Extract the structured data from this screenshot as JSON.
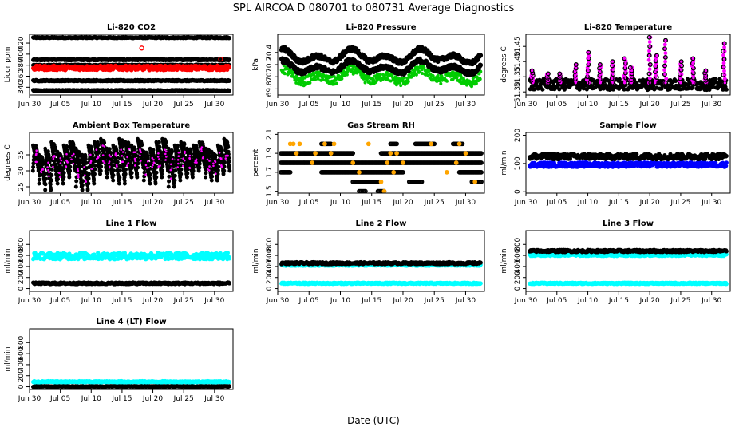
{
  "figure": {
    "title": "SPL   AIRCOA D   080701 to 080731   Average Diagnostics",
    "xlabel": "Date (UTC)"
  },
  "colors": {
    "black": "#000000",
    "red": "#ff0000",
    "green": "#00cc00",
    "magenta": "#ff00ff",
    "orange": "#ffa500",
    "blue": "#0000ff",
    "cyan": "#00ffff"
  },
  "chart_data": [
    {
      "type": "scatter",
      "title": "Li-820 CO2",
      "ylabel": "Licor ppm",
      "xlim": [
        0,
        33
      ],
      "ylim": [
        326,
        436
      ],
      "yticks": [
        340,
        360,
        380,
        400,
        420
      ],
      "xtick_positions": [
        0,
        5,
        10,
        15,
        20,
        25,
        30
      ],
      "xtick_labels": [
        "Jun 30",
        "Jul 05",
        "Jul 10",
        "Jul 15",
        "Jul 20",
        "Jul 25",
        "Jul 30"
      ],
      "series": [
        {
          "name": "ref 430",
          "color": "black",
          "style": "band",
          "level": 430,
          "spread": 1
        },
        {
          "name": "ref 390",
          "color": "black",
          "style": "band",
          "level": 390,
          "spread": 1
        },
        {
          "name": "ref 380",
          "color": "black",
          "style": "band",
          "level": 380,
          "spread": 1
        },
        {
          "name": "ref 352",
          "color": "black",
          "style": "band",
          "level": 352,
          "spread": 1
        },
        {
          "name": "ref 334",
          "color": "black",
          "style": "band",
          "level": 334,
          "spread": 1
        },
        {
          "name": "sample",
          "color": "red",
          "style": "band",
          "level": 375,
          "spread": 4
        },
        {
          "name": "outliers",
          "color": "red",
          "style": "points",
          "x": [
            18.2,
            31.0
          ],
          "y": [
            411,
            391
          ]
        }
      ]
    },
    {
      "type": "scatter",
      "title": "Li-820 Pressure",
      "ylabel": "kPa",
      "xlim": [
        0,
        33
      ],
      "ylim": [
        69.7,
        70.7
      ],
      "yticks": [
        69.8,
        70.0,
        70.2,
        70.4
      ],
      "xtick_positions": [
        0,
        5,
        10,
        15,
        20,
        25,
        30
      ],
      "xtick_labels": [
        "Jun 30",
        "Jul 05",
        "Jul 10",
        "Jul 15",
        "Jul 20",
        "Jul 25",
        "Jul 30"
      ],
      "series": [
        {
          "name": "sample",
          "color": "green",
          "style": "wave",
          "base": 70.0,
          "amp": 0.12,
          "spread": 0.07,
          "phase": 0.6
        },
        {
          "name": "ref A",
          "color": "black",
          "style": "wave",
          "base": 70.15,
          "amp": 0.12,
          "spread": 0.035,
          "phase": 0.6
        },
        {
          "name": "ref B",
          "color": "black",
          "style": "wave",
          "base": 70.33,
          "amp": 0.13,
          "spread": 0.035,
          "phase": 0.6
        }
      ]
    },
    {
      "type": "scatter",
      "title": "Li-820 Temperature",
      "ylabel": "degrees C",
      "xlim": [
        0,
        33
      ],
      "ylim": [
        51.29,
        51.49
      ],
      "yticks": [
        51.3,
        51.35,
        51.4,
        51.45
      ],
      "ytick_labels": [
        "51.30",
        "51.35",
        "51.40",
        "51.45"
      ],
      "xtick_positions": [
        0,
        5,
        10,
        15,
        20,
        25,
        30
      ],
      "xtick_labels": [
        "Jun 30",
        "Jul 05",
        "Jul 10",
        "Jul 15",
        "Jul 20",
        "Jul 25",
        "Jul 30"
      ],
      "series": [
        {
          "name": "baseline",
          "color": "black",
          "style": "band",
          "level": 51.325,
          "spread": 0.018
        },
        {
          "name": "spikes",
          "color": "magenta",
          "style": "spikes",
          "x": [
            1,
            3.5,
            5.5,
            8,
            10,
            12,
            14,
            16,
            17,
            20,
            21,
            22.5,
            25,
            27,
            29,
            32
          ],
          "y": [
            51.37,
            51.36,
            51.36,
            51.39,
            51.43,
            51.39,
            51.4,
            51.41,
            51.38,
            51.48,
            51.42,
            51.47,
            51.4,
            51.41,
            51.37,
            51.46
          ]
        }
      ]
    },
    {
      "type": "scatter",
      "title": "Ambient Box Temperature",
      "ylabel": "degrees C",
      "xlim": [
        0,
        33
      ],
      "ylim": [
        23,
        42
      ],
      "yticks": [
        25,
        30,
        35
      ],
      "xtick_positions": [
        0,
        5,
        10,
        15,
        20,
        25,
        30
      ],
      "xtick_labels": [
        "Jun 30",
        "Jul 05",
        "Jul 10",
        "Jul 15",
        "Jul 20",
        "Jul 25",
        "Jul 30"
      ],
      "series": [
        {
          "name": "ambient",
          "color": "black",
          "style": "diurnal",
          "days": [
            1,
            2,
            3,
            4,
            5,
            6,
            7,
            8,
            9,
            10,
            11,
            12,
            13,
            14,
            15,
            16,
            17,
            18,
            19,
            20,
            21,
            22,
            23,
            24,
            25,
            26,
            27,
            28,
            29,
            30,
            31,
            32
          ],
          "min": [
            30,
            26,
            24,
            27,
            26,
            28,
            30,
            25,
            24,
            26,
            29,
            30,
            28,
            27,
            26,
            29,
            28,
            31,
            27,
            26,
            28,
            30,
            25,
            27,
            29,
            28,
            30,
            31,
            28,
            27,
            29,
            30
          ],
          "max": [
            38,
            35,
            37,
            39,
            36,
            38,
            39,
            37,
            35,
            38,
            39,
            40,
            37,
            38,
            40,
            39,
            38,
            40,
            36,
            37,
            39,
            40,
            37,
            38,
            39,
            37,
            38,
            39,
            37,
            36,
            38,
            40
          ]
        },
        {
          "name": "ambient (alt)",
          "color": "magenta",
          "style": "diurnal-dots"
        }
      ]
    },
    {
      "type": "scatter",
      "title": "Gas Stream RH",
      "ylabel": "percent",
      "xlim": [
        0,
        33
      ],
      "ylim": [
        1.48,
        2.12
      ],
      "yticks": [
        1.5,
        1.7,
        1.9,
        2.1
      ],
      "xtick_positions": [
        0,
        5,
        10,
        15,
        20,
        25,
        30
      ],
      "xtick_labels": [
        "Jun 30",
        "Jul 05",
        "Jul 10",
        "Jul 15",
        "Jul 20",
        "Jul 25",
        "Jul 30"
      ],
      "series": [
        {
          "name": "level 1.8",
          "color": "black",
          "style": "segments",
          "level": 1.8,
          "ranges": [
            [
              0.5,
              32.5
            ]
          ]
        },
        {
          "name": "level 1.9",
          "color": "black",
          "style": "segments",
          "level": 1.9,
          "ranges": [
            [
              0.5,
              12
            ],
            [
              16.5,
              32.5
            ]
          ]
        },
        {
          "name": "level 1.7",
          "color": "black",
          "style": "segments",
          "level": 1.7,
          "ranges": [
            [
              0.5,
              2
            ],
            [
              7,
              20
            ],
            [
              29,
              32.5
            ]
          ]
        },
        {
          "name": "level 1.6",
          "color": "black",
          "style": "segments",
          "level": 1.6,
          "ranges": [
            [
              12,
              16
            ],
            [
              21,
              23
            ],
            [
              31,
              32.5
            ]
          ]
        },
        {
          "name": "level 2.0",
          "color": "black",
          "style": "segments",
          "level": 2.0,
          "ranges": [
            [
              7,
              8.5
            ],
            [
              18,
              19
            ],
            [
              22,
              25
            ],
            [
              28,
              29.5
            ]
          ]
        },
        {
          "name": "level 1.5",
          "color": "black",
          "style": "segments",
          "level": 1.5,
          "ranges": [
            [
              13,
              14
            ],
            [
              16,
              17
            ]
          ]
        },
        {
          "name": "alt",
          "color": "orange",
          "style": "points",
          "x": [
            2,
            2.5,
            3,
            3.5,
            5.5,
            6,
            7.5,
            8.5,
            9,
            12,
            13,
            14.5,
            16.5,
            17,
            17.5,
            18,
            18.5,
            19,
            20,
            24.5,
            27,
            28.5,
            29,
            30,
            31.5
          ],
          "y": [
            2.0,
            2.0,
            1.9,
            2.0,
            1.8,
            1.9,
            2.0,
            1.9,
            2.0,
            1.8,
            1.7,
            2.0,
            1.6,
            1.5,
            1.8,
            1.9,
            1.7,
            1.9,
            1.8,
            2.0,
            1.7,
            1.8,
            2.0,
            1.9,
            1.6
          ]
        }
      ]
    },
    {
      "type": "scatter",
      "title": "Sample Flow",
      "ylabel": "ml/min",
      "xlim": [
        0,
        33
      ],
      "ylim": [
        -5,
        210
      ],
      "yticks": [
        0,
        100,
        200
      ],
      "xtick_positions": [
        0,
        5,
        10,
        15,
        20,
        25,
        30
      ],
      "xtick_labels": [
        "Jun 30",
        "Jul 05",
        "Jul 10",
        "Jul 15",
        "Jul 20",
        "Jul 25",
        "Jul 30"
      ],
      "series": [
        {
          "name": "sample",
          "color": "blue",
          "style": "band",
          "level": 96,
          "spread": 8
        },
        {
          "name": "ref",
          "color": "black",
          "style": "band",
          "level": 125,
          "spread": 10
        }
      ]
    },
    {
      "type": "scatter",
      "title": "Line 1 Flow",
      "ylabel": "ml/min",
      "xlim": [
        0,
        33
      ],
      "ylim": [
        -50,
        1050
      ],
      "yticks": [
        0,
        200,
        400,
        600,
        800
      ],
      "xtick_positions": [
        0,
        5,
        10,
        15,
        20,
        25,
        30
      ],
      "xtick_labels": [
        "Jun 30",
        "Jul 05",
        "Jul 10",
        "Jul 15",
        "Jul 20",
        "Jul 25",
        "Jul 30"
      ],
      "series": [
        {
          "name": "cyan",
          "color": "cyan",
          "style": "band",
          "level": 590,
          "spread": 60
        },
        {
          "name": "black",
          "color": "black",
          "style": "band",
          "level": 95,
          "spread": 15
        }
      ]
    },
    {
      "type": "scatter",
      "title": "Line 2 Flow",
      "ylabel": "ml/min",
      "xlim": [
        0,
        33
      ],
      "ylim": [
        -50,
        1050
      ],
      "yticks": [
        0,
        200,
        400,
        600,
        800
      ],
      "xtick_positions": [
        0,
        5,
        10,
        15,
        20,
        25,
        30
      ],
      "xtick_labels": [
        "Jun 30",
        "Jul 05",
        "Jul 10",
        "Jul 15",
        "Jul 20",
        "Jul 25",
        "Jul 30"
      ],
      "series": [
        {
          "name": "cyan",
          "color": "cyan",
          "style": "band",
          "level": 95,
          "spread": 12
        },
        {
          "name": "cyan hi",
          "color": "cyan",
          "style": "band",
          "level": 425,
          "spread": 12
        },
        {
          "name": "black",
          "color": "black",
          "style": "band",
          "level": 460,
          "spread": 18
        }
      ]
    },
    {
      "type": "scatter",
      "title": "Line 3 Flow",
      "ylabel": "ml/min",
      "xlim": [
        0,
        33
      ],
      "ylim": [
        -50,
        1050
      ],
      "yticks": [
        0,
        200,
        400,
        600,
        800
      ],
      "xtick_positions": [
        0,
        5,
        10,
        15,
        20,
        25,
        30
      ],
      "xtick_labels": [
        "Jun 30",
        "Jul 05",
        "Jul 10",
        "Jul 15",
        "Jul 20",
        "Jul 25",
        "Jul 30"
      ],
      "series": [
        {
          "name": "cyan",
          "color": "cyan",
          "style": "band",
          "level": 95,
          "spread": 12
        },
        {
          "name": "cyan hi",
          "color": "cyan",
          "style": "band",
          "level": 610,
          "spread": 20
        },
        {
          "name": "black",
          "color": "black",
          "style": "band",
          "level": 680,
          "spread": 20
        }
      ]
    },
    {
      "type": "scatter",
      "title": "Line 4 (LT) Flow",
      "ylabel": "ml/min",
      "xlim": [
        0,
        33
      ],
      "ylim": [
        -50,
        1050
      ],
      "yticks": [
        0,
        200,
        400,
        600,
        800
      ],
      "xtick_positions": [
        0,
        5,
        10,
        15,
        20,
        25,
        30
      ],
      "xtick_labels": [
        "Jun 30",
        "Jul 05",
        "Jul 10",
        "Jul 15",
        "Jul 20",
        "Jul 25",
        "Jul 30"
      ],
      "series": [
        {
          "name": "cyan",
          "color": "cyan",
          "style": "band",
          "level": 90,
          "spread": 12
        },
        {
          "name": "black",
          "color": "black",
          "style": "band",
          "level": 5,
          "spread": 6
        }
      ]
    }
  ]
}
